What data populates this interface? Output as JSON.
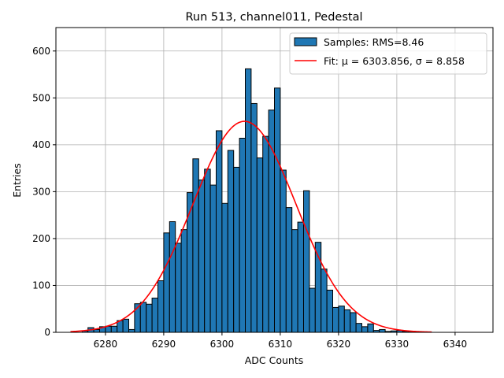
{
  "chart_data": {
    "type": "bar",
    "title": "Run 513, channel011, Pedestal",
    "xlabel": "ADC Counts",
    "ylabel": "Entries",
    "xlim": [
      6271.5,
      6346.5
    ],
    "ylim": [
      0,
      650
    ],
    "x_ticks": [
      6280,
      6290,
      6300,
      6310,
      6320,
      6330,
      6340
    ],
    "y_ticks": [
      0,
      100,
      200,
      300,
      400,
      500,
      600
    ],
    "grid": true,
    "legend_position": "top-right",
    "bin_width": 1,
    "series": [
      {
        "name": "Samples: RMS=8.46",
        "kind": "histogram",
        "color": "#1f77b4",
        "edgecolor": "#000000",
        "bin_starts": [
          6276,
          6277,
          6278,
          6279,
          6280,
          6281,
          6282,
          6283,
          6284,
          6285,
          6286,
          6287,
          6288,
          6289,
          6290,
          6291,
          6292,
          6293,
          6294,
          6295,
          6296,
          6297,
          6298,
          6299,
          6300,
          6301,
          6302,
          6303,
          6304,
          6305,
          6306,
          6307,
          6308,
          6309,
          6310,
          6311,
          6312,
          6313,
          6314,
          6315,
          6316,
          6317,
          6318,
          6319,
          6320,
          6321,
          6322,
          6323,
          6324,
          6325,
          6326,
          6327,
          6328,
          6329,
          6330,
          6331,
          6332
        ],
        "values": [
          3,
          10,
          6,
          12,
          13,
          13,
          25,
          28,
          6,
          61,
          64,
          60,
          73,
          110,
          212,
          236,
          190,
          219,
          298,
          370,
          325,
          348,
          314,
          430,
          275,
          388,
          352,
          414,
          562,
          488,
          372,
          418,
          474,
          521,
          346,
          266,
          219,
          235,
          302,
          94,
          192,
          135,
          90,
          53,
          56,
          48,
          42,
          19,
          12,
          18,
          4,
          6,
          2,
          3,
          4,
          2,
          2
        ]
      },
      {
        "name": "Fit: μ = 6303.856, σ = 8.858",
        "kind": "gaussian_fit",
        "color": "#ff0000",
        "mu": 6303.856,
        "sigma": 8.858,
        "amplitude": 450,
        "x_range": [
          6274,
          6336
        ]
      }
    ]
  }
}
